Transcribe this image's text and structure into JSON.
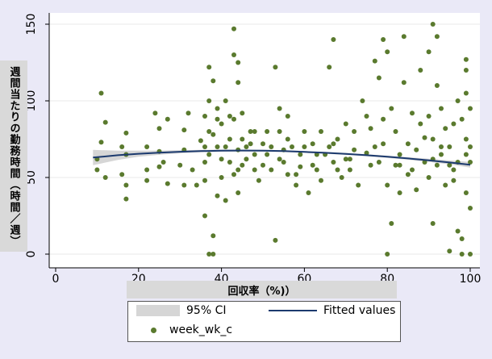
{
  "chart_data": {
    "type": "scatter",
    "title": "",
    "xlabel": "回収率（%)）",
    "ylabel": "週間当たりの勤務時間（時間／週）",
    "xlim": [
      0,
      100
    ],
    "ylim": [
      0,
      150
    ],
    "x_ticks": [
      0,
      20,
      40,
      60,
      80,
      100
    ],
    "y_ticks": [
      0,
      50,
      100,
      150
    ],
    "grid": "horizontal",
    "legend_position": "bottom",
    "colors": {
      "points": "#5a7a2e",
      "fit_line": "#1c3a6e",
      "ci_band": "#d6d6d6",
      "plot_background": "#ffffff",
      "page_background": "#eae9f7"
    },
    "series": [
      {
        "name": "week_wk_c",
        "kind": "scatter",
        "points": [
          [
            10,
            62
          ],
          [
            11,
            105
          ],
          [
            12,
            86
          ],
          [
            11,
            73
          ],
          [
            10,
            55
          ],
          [
            12,
            50
          ],
          [
            16,
            70
          ],
          [
            16,
            52
          ],
          [
            17,
            45
          ],
          [
            17,
            36
          ],
          [
            17,
            65
          ],
          [
            17,
            79
          ],
          [
            22,
            70
          ],
          [
            22,
            48
          ],
          [
            22,
            55
          ],
          [
            24,
            92
          ],
          [
            25,
            57
          ],
          [
            25,
            67
          ],
          [
            25,
            82
          ],
          [
            26,
            60
          ],
          [
            27,
            46
          ],
          [
            27,
            88
          ],
          [
            30,
            58
          ],
          [
            31,
            45
          ],
          [
            31,
            68
          ],
          [
            31,
            81
          ],
          [
            33,
            55
          ],
          [
            34,
            45
          ],
          [
            35,
            74
          ],
          [
            32,
            92
          ],
          [
            36,
            60
          ],
          [
            36,
            25
          ],
          [
            37,
            122
          ],
          [
            37,
            0
          ],
          [
            37,
            80
          ],
          [
            37,
            100
          ],
          [
            38,
            113
          ],
          [
            38,
            12
          ],
          [
            36,
            48
          ],
          [
            38,
            0
          ],
          [
            39,
            88
          ],
          [
            39,
            38
          ],
          [
            39,
            70
          ],
          [
            40,
            50
          ],
          [
            40,
            85
          ],
          [
            41,
            100
          ],
          [
            42,
            75
          ],
          [
            42,
            60
          ],
          [
            43,
            130
          ],
          [
            43,
            147
          ],
          [
            43,
            88
          ],
          [
            44,
            125
          ],
          [
            44,
            112
          ],
          [
            44,
            40
          ],
          [
            45,
            75
          ],
          [
            45,
            58
          ],
          [
            46,
            70
          ],
          [
            47,
            80
          ],
          [
            48,
            65
          ],
          [
            48,
            55
          ],
          [
            49,
            48
          ],
          [
            50,
            72
          ],
          [
            51,
            65
          ],
          [
            52,
            55
          ],
          [
            53,
            122
          ],
          [
            53,
            9
          ],
          [
            54,
            95
          ],
          [
            54,
            80
          ],
          [
            55,
            60
          ],
          [
            56,
            52
          ],
          [
            56,
            90
          ],
          [
            57,
            70
          ],
          [
            58,
            45
          ],
          [
            59,
            65
          ],
          [
            60,
            80
          ],
          [
            61,
            40
          ],
          [
            62,
            72
          ],
          [
            63,
            55
          ],
          [
            64,
            48
          ],
          [
            65,
            65
          ],
          [
            66,
            122
          ],
          [
            67,
            140
          ],
          [
            67,
            60
          ],
          [
            68,
            75
          ],
          [
            69,
            50
          ],
          [
            70,
            85
          ],
          [
            71,
            55
          ],
          [
            72,
            68
          ],
          [
            73,
            45
          ],
          [
            74,
            100
          ],
          [
            75,
            90
          ],
          [
            76,
            58
          ],
          [
            77,
            126
          ],
          [
            77,
            70
          ],
          [
            78,
            115
          ],
          [
            78,
            60
          ],
          [
            79,
            140
          ],
          [
            80,
            132
          ],
          [
            80,
            45
          ],
          [
            80,
            0
          ],
          [
            81,
            20
          ],
          [
            81,
            95
          ],
          [
            82,
            80
          ],
          [
            83,
            65
          ],
          [
            83,
            40
          ],
          [
            84,
            142
          ],
          [
            84,
            112
          ],
          [
            85,
            72
          ],
          [
            86,
            55
          ],
          [
            87,
            42
          ],
          [
            88,
            120
          ],
          [
            88,
            85
          ],
          [
            89,
            60
          ],
          [
            90,
            132
          ],
          [
            90,
            50
          ],
          [
            91,
            150
          ],
          [
            91,
            75
          ],
          [
            91,
            20
          ],
          [
            92,
            142
          ],
          [
            92,
            110
          ],
          [
            93,
            95
          ],
          [
            93,
            65
          ],
          [
            94,
            45
          ],
          [
            95,
            70
          ],
          [
            95,
            2
          ],
          [
            96,
            85
          ],
          [
            96,
            55
          ],
          [
            97,
            100
          ],
          [
            97,
            15
          ],
          [
            98,
            10
          ],
          [
            98,
            0
          ],
          [
            99,
            127
          ],
          [
            99,
            120
          ],
          [
            99,
            105
          ],
          [
            99,
            75
          ],
          [
            99,
            40
          ],
          [
            100,
            95
          ],
          [
            100,
            60
          ],
          [
            100,
            30
          ],
          [
            100,
            0
          ],
          [
            98,
            88
          ],
          [
            97,
            60
          ],
          [
            96,
            48
          ],
          [
            94,
            82
          ],
          [
            92,
            58
          ],
          [
            90,
            90
          ],
          [
            86,
            92
          ],
          [
            82,
            58
          ],
          [
            79,
            88
          ],
          [
            76,
            82
          ],
          [
            72,
            80
          ],
          [
            70,
            62
          ],
          [
            68,
            55
          ],
          [
            66,
            70
          ],
          [
            64,
            80
          ],
          [
            62,
            58
          ],
          [
            60,
            70
          ],
          [
            58,
            52
          ],
          [
            56,
            75
          ],
          [
            54,
            62
          ],
          [
            52,
            70
          ],
          [
            50,
            58
          ],
          [
            48,
            80
          ],
          [
            46,
            62
          ],
          [
            45,
            92
          ],
          [
            44,
            68
          ],
          [
            43,
            52
          ],
          [
            42,
            90
          ],
          [
            41,
            70
          ],
          [
            40,
            62
          ],
          [
            39,
            95
          ],
          [
            38,
            78
          ],
          [
            37,
            65
          ],
          [
            36,
            90
          ],
          [
            36,
            70
          ],
          [
            41,
            35
          ],
          [
            44,
            55
          ],
          [
            47,
            72
          ],
          [
            51,
            80
          ],
          [
            55,
            68
          ],
          [
            59,
            57
          ],
          [
            63,
            65
          ],
          [
            67,
            72
          ],
          [
            71,
            62
          ],
          [
            75,
            66
          ],
          [
            79,
            72
          ],
          [
            83,
            58
          ],
          [
            87,
            68
          ],
          [
            91,
            62
          ],
          [
            95,
            58
          ],
          [
            99,
            65
          ],
          [
            100,
            70
          ],
          [
            85,
            52
          ],
          [
            89,
            76
          ],
          [
            93,
            70
          ]
        ]
      },
      {
        "name": "Fitted values",
        "kind": "line",
        "x": [
          9,
          15,
          20,
          25,
          30,
          35,
          40,
          45,
          50,
          55,
          60,
          65,
          70,
          75,
          80,
          85,
          90,
          95,
          100
        ],
        "y": [
          63,
          64.5,
          65.5,
          66.2,
          66.8,
          67.2,
          67.5,
          67.6,
          67.5,
          67.2,
          66.7,
          66.1,
          65.4,
          64.5,
          63.5,
          62.4,
          61.2,
          59.8,
          58.3
        ]
      },
      {
        "name": "95% CI",
        "kind": "band",
        "x": [
          9,
          15,
          20,
          25,
          30,
          35,
          40,
          45,
          50,
          55,
          60,
          65,
          70,
          75,
          80,
          85,
          90,
          95,
          100
        ],
        "lower": [
          58,
          61.5,
          63.5,
          64.8,
          65.8,
          66.4,
          66.8,
          67.0,
          66.9,
          66.6,
          66.1,
          65.5,
          64.8,
          63.9,
          62.8,
          61.6,
          60.2,
          58.5,
          56.5
        ],
        "upper": [
          68,
          67.5,
          67.5,
          67.6,
          67.8,
          68.0,
          68.2,
          68.2,
          68.1,
          67.8,
          67.3,
          66.7,
          66.0,
          65.1,
          64.2,
          63.2,
          62.2,
          61.1,
          60.1
        ]
      }
    ]
  },
  "legend": {
    "items": [
      {
        "label": "95% CI",
        "kind": "band"
      },
      {
        "label": "Fitted values",
        "kind": "line"
      },
      {
        "label": "week_wk_c",
        "kind": "marker"
      }
    ]
  }
}
